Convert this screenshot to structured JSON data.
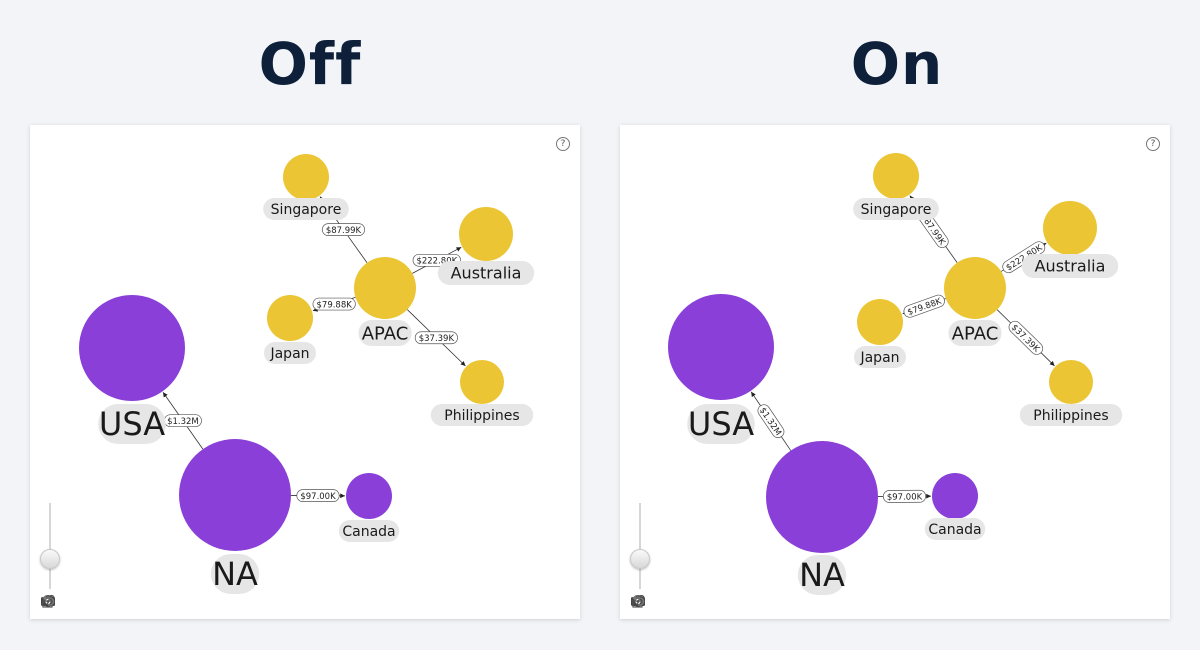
{
  "titles": {
    "off": "Off",
    "on": "On"
  },
  "help_symbol": "?",
  "colors": {
    "apac": "#ebc534",
    "na": "#8a3fd8",
    "label_bg": "#e6e6e6",
    "title": "#0e1f3a"
  },
  "graph": {
    "nodes": [
      {
        "id": "Singapore",
        "label": "Singapore",
        "group": "apac"
      },
      {
        "id": "Australia",
        "label": "Australia",
        "group": "apac"
      },
      {
        "id": "APAC",
        "label": "APAC",
        "group": "apac"
      },
      {
        "id": "Japan",
        "label": "Japan",
        "group": "apac"
      },
      {
        "id": "Philippines",
        "label": "Philippines",
        "group": "apac"
      },
      {
        "id": "USA",
        "label": "USA",
        "group": "na"
      },
      {
        "id": "NA",
        "label": "NA",
        "group": "na"
      },
      {
        "id": "Canada",
        "label": "Canada",
        "group": "na"
      }
    ],
    "edges": [
      {
        "from": "APAC",
        "to": "Singapore",
        "label": "$87.99K"
      },
      {
        "from": "APAC",
        "to": "Australia",
        "label": "$222.80K"
      },
      {
        "from": "APAC",
        "to": "Japan",
        "label": "$79.88K"
      },
      {
        "from": "APAC",
        "to": "Philippines",
        "label": "$37.39K"
      },
      {
        "from": "NA",
        "to": "USA",
        "label": "$1.32M"
      },
      {
        "from": "NA",
        "to": "Canada",
        "label": "$97.00K"
      }
    ]
  },
  "toolbar": [
    "screenshot-icon",
    "refresh-icon",
    "unlock-icon",
    "undo-icon"
  ]
}
